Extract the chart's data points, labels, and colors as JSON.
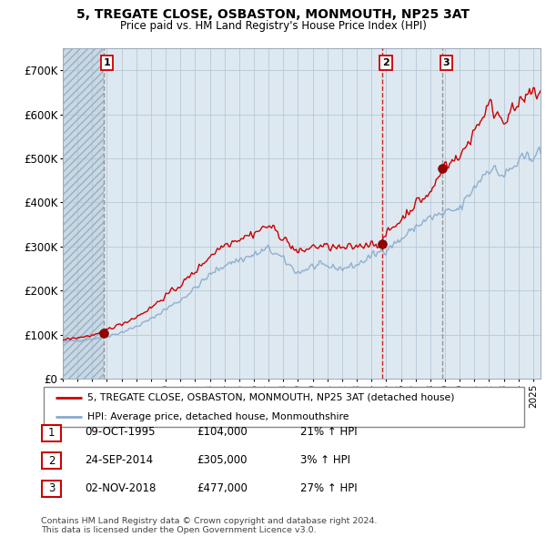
{
  "title": "5, TREGATE CLOSE, OSBASTON, MONMOUTH, NP25 3AT",
  "subtitle": "Price paid vs. HM Land Registry's House Price Index (HPI)",
  "xlim": [
    1993.0,
    2025.5
  ],
  "ylim": [
    0,
    750000
  ],
  "yticks": [
    0,
    100000,
    200000,
    300000,
    400000,
    500000,
    600000,
    700000
  ],
  "ytick_labels": [
    "£0",
    "£100K",
    "£200K",
    "£300K",
    "£400K",
    "£500K",
    "£600K",
    "£700K"
  ],
  "sale_color": "#cc0000",
  "hpi_color": "#88aacc",
  "marker_color": "#990000",
  "sale_vline_color": "#cc0000",
  "other_vline_color": "#888888",
  "background_color": "#dde8f0",
  "plot_bg_color": "#dde8f0",
  "grid_color": "#aabbcc",
  "hatch_color": "#bbccdd",
  "legend_sale_label": "5, TREGATE CLOSE, OSBASTON, MONMOUTH, NP25 3AT (detached house)",
  "legend_hpi_label": "HPI: Average price, detached house, Monmouthshire",
  "sales": [
    {
      "num": 1,
      "date_x": 1995.77,
      "price": 104000
    },
    {
      "num": 2,
      "date_x": 2014.73,
      "price": 305000
    },
    {
      "num": 3,
      "date_x": 2018.84,
      "price": 477000
    }
  ],
  "sale_table": [
    {
      "num": "1",
      "date": "09-OCT-1995",
      "price": "£104,000",
      "hpi": "21% ↑ HPI"
    },
    {
      "num": "2",
      "date": "24-SEP-2014",
      "price": "£305,000",
      "hpi": "3% ↑ HPI"
    },
    {
      "num": "3",
      "date": "02-NOV-2018",
      "price": "£477,000",
      "hpi": "27% ↑ HPI"
    }
  ],
  "footer": "Contains HM Land Registry data © Crown copyright and database right 2024.\nThis data is licensed under the Open Government Licence v3.0.",
  "hatch_xstart": 1993.0,
  "hatch_xend": 1995.77
}
